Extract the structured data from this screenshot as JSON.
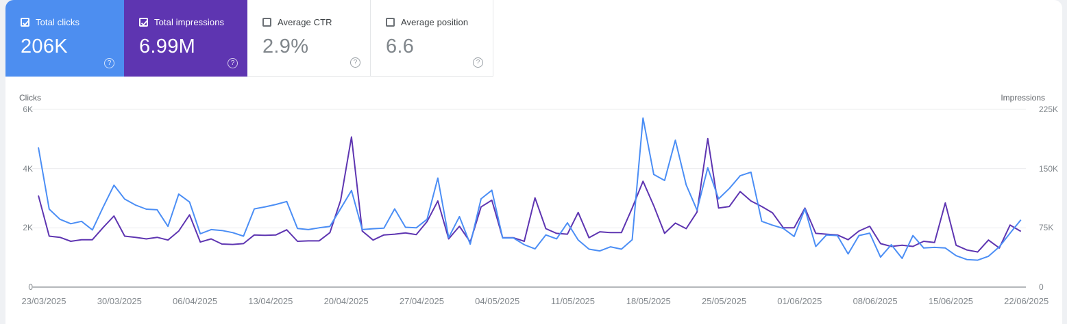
{
  "cards": [
    {
      "label": "Total clicks",
      "value": "206K",
      "checked": true,
      "color": "#4d8ef0"
    },
    {
      "label": "Total impressions",
      "value": "6.99M",
      "checked": true,
      "color": "#5e35b1"
    },
    {
      "label": "Average CTR",
      "value": "2.9%",
      "checked": false
    },
    {
      "label": "Average position",
      "value": "6.6",
      "checked": false
    }
  ],
  "icons": {
    "help_glyph": "?"
  },
  "chart_data": {
    "type": "line",
    "grid": "horizontal",
    "legend": "none",
    "left_axis": {
      "title": "Clicks",
      "ticks": [
        "0",
        "2K",
        "4K",
        "6K"
      ],
      "range": [
        0,
        6000
      ]
    },
    "right_axis": {
      "title": "Impressions",
      "ticks": [
        "0",
        "75K",
        "150K",
        "225K"
      ],
      "range": [
        0,
        225000
      ]
    },
    "x_labels": [
      "23/03/2025",
      "30/03/2025",
      "06/04/2025",
      "13/04/2025",
      "20/04/2025",
      "27/04/2025",
      "04/05/2025",
      "11/05/2025",
      "18/05/2025",
      "25/05/2025",
      "01/06/2025",
      "08/06/2025",
      "15/06/2025",
      "22/06/2025"
    ],
    "points_per_series": 92,
    "x_range_dates": [
      "23/03/2025",
      "22/06/2025"
    ],
    "series": [
      {
        "name": "Total clicks",
        "color": "#4b8ef5",
        "axis": "left",
        "values": [
          4720,
          2630,
          2290,
          2140,
          2220,
          1930,
          2700,
          3440,
          2970,
          2770,
          2630,
          2610,
          2050,
          3140,
          2870,
          1800,
          1940,
          1910,
          1840,
          1720,
          2640,
          2710,
          2790,
          2890,
          1980,
          1940,
          2000,
          2050,
          2650,
          3260,
          1940,
          1970,
          1990,
          2640,
          2020,
          2000,
          2290,
          3680,
          1670,
          2380,
          1450,
          2980,
          3270,
          1660,
          1660,
          1430,
          1290,
          1760,
          1630,
          2170,
          1590,
          1280,
          1220,
          1360,
          1280,
          1600,
          5710,
          3800,
          3600,
          4960,
          3450,
          2600,
          4030,
          2980,
          3330,
          3760,
          3880,
          2220,
          2090,
          1980,
          1710,
          2640,
          1370,
          1760,
          1740,
          1120,
          1740,
          1820,
          1010,
          1430,
          970,
          1740,
          1320,
          1340,
          1320,
          1060,
          930,
          910,
          1040,
          1360,
          1820,
          2270
        ]
      },
      {
        "name": "Total impressions",
        "color": "#5e35b1",
        "axis": "right",
        "values": [
          116000,
          64500,
          63000,
          58000,
          60000,
          60000,
          75500,
          90000,
          64500,
          63000,
          61000,
          63000,
          59500,
          71000,
          91500,
          57000,
          61000,
          54500,
          54000,
          55000,
          66000,
          65500,
          66000,
          72500,
          58000,
          58500,
          58500,
          69000,
          110000,
          190000,
          71000,
          59500,
          66000,
          67000,
          68500,
          66500,
          83000,
          109000,
          61000,
          77000,
          57000,
          101500,
          110000,
          62500,
          62500,
          58000,
          113000,
          74000,
          68000,
          67000,
          94500,
          62500,
          70000,
          69000,
          69000,
          100000,
          134000,
          103000,
          68000,
          81000,
          74000,
          95000,
          188000,
          100000,
          102000,
          121000,
          109000,
          102000,
          94000,
          75000,
          75000,
          100000,
          68000,
          67000,
          66000,
          60000,
          71000,
          77000,
          55000,
          51500,
          53000,
          51500,
          58000,
          56500,
          106500,
          53000,
          47000,
          44500,
          59500,
          49500,
          78500,
          70500
        ]
      }
    ]
  }
}
